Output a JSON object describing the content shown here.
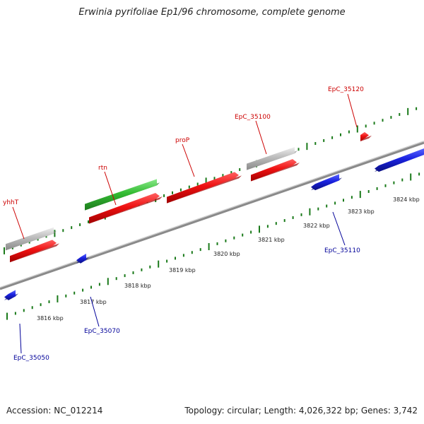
{
  "title": "Erwinia pyrifoliae Ep1/96 chromosome, complete genome",
  "footer": {
    "accession": "Accession: NC_012214",
    "summary": "Topology: circular; Length: 4,026,322 bp; Genes: 3,742"
  },
  "colors": {
    "backbone": "#8a8a8a",
    "tick": "#1a7a1a",
    "red_gene": "#ee1111",
    "green_gene": "#33bb33",
    "grey_gene": "#bbbbbb",
    "blue_gene": "#1a22e0",
    "red_label": "#cc0000",
    "blue_label": "#000099"
  },
  "scale": {
    "unit": "kbp",
    "labels": [
      "3816 kbp",
      "3817 kbp",
      "3818 kbp",
      "3819 kbp",
      "3820 kbp",
      "3821 kbp",
      "3822 kbp",
      "3823 kbp",
      "3824 kbp"
    ]
  },
  "genes": [
    {
      "label": "yhhT",
      "color": "red"
    },
    {
      "label": "rtn",
      "color": "red"
    },
    {
      "label": "proP",
      "color": "red"
    },
    {
      "label": "EpC_35100",
      "color": "red"
    },
    {
      "label": "EpC_35120",
      "color": "red"
    },
    {
      "label": "EpC_35050",
      "color": "blue"
    },
    {
      "label": "EpC_35070",
      "color": "blue"
    },
    {
      "label": "EpC_35110",
      "color": "blue"
    }
  ]
}
